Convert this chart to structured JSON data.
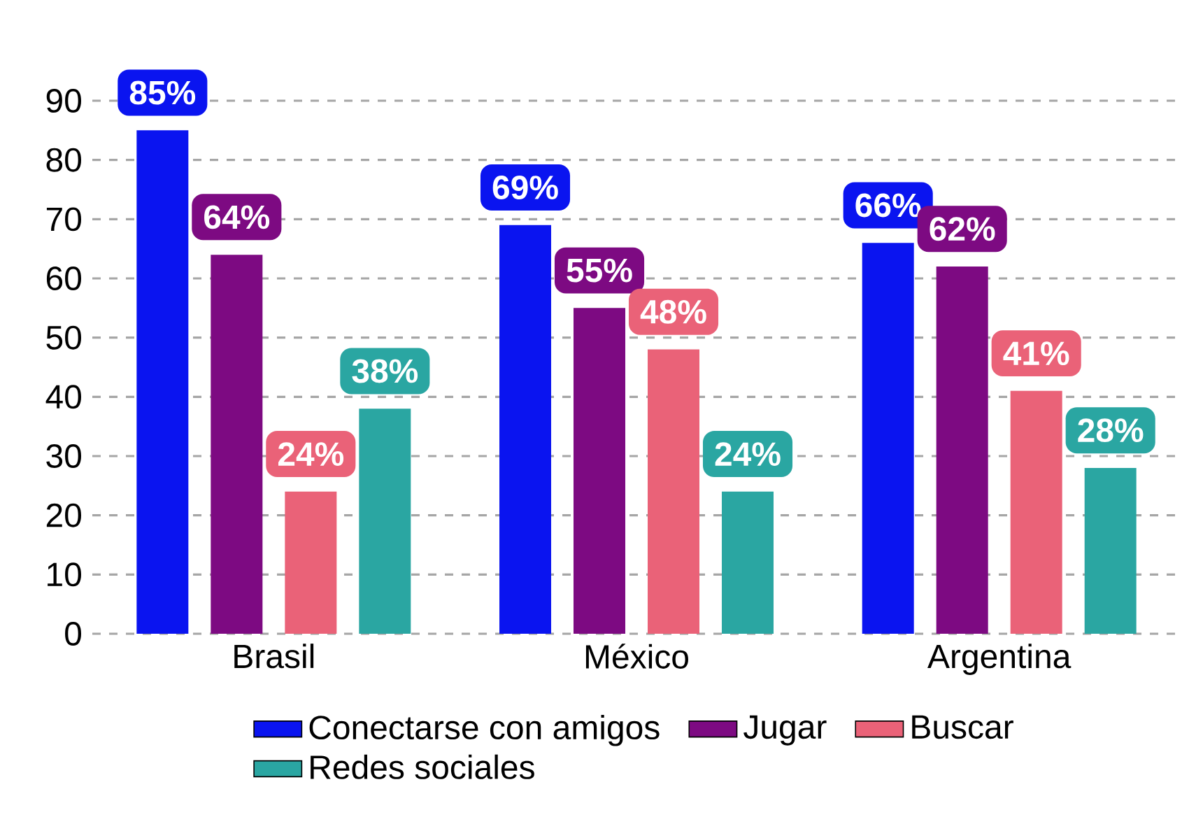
{
  "chart_data": {
    "type": "bar",
    "categories": [
      "Brasil",
      "México",
      "Argentina"
    ],
    "series": [
      {
        "name": "Conectarse con amigos",
        "color": "#0a14f0",
        "values": [
          85,
          69,
          66
        ],
        "value_labels": [
          "85%",
          "69%",
          "66%"
        ]
      },
      {
        "name": "Jugar",
        "color": "#7d0a82",
        "values": [
          64,
          55,
          62
        ],
        "value_labels": [
          "64%",
          "55%",
          "62%"
        ]
      },
      {
        "name": "Buscar",
        "color": "#ea6278",
        "values": [
          24,
          48,
          41
        ],
        "value_labels": [
          "24%",
          "48%",
          "41%"
        ]
      },
      {
        "name": "Redes sociales",
        "color": "#2aa6a2",
        "values": [
          38,
          24,
          28
        ],
        "value_labels": [
          "38%",
          "24%",
          "28%"
        ]
      }
    ],
    "ylim": [
      0,
      90
    ],
    "yticks": [
      0,
      10,
      20,
      30,
      40,
      50,
      60,
      70,
      80,
      90
    ],
    "grid": "y",
    "legend": "bottom"
  }
}
